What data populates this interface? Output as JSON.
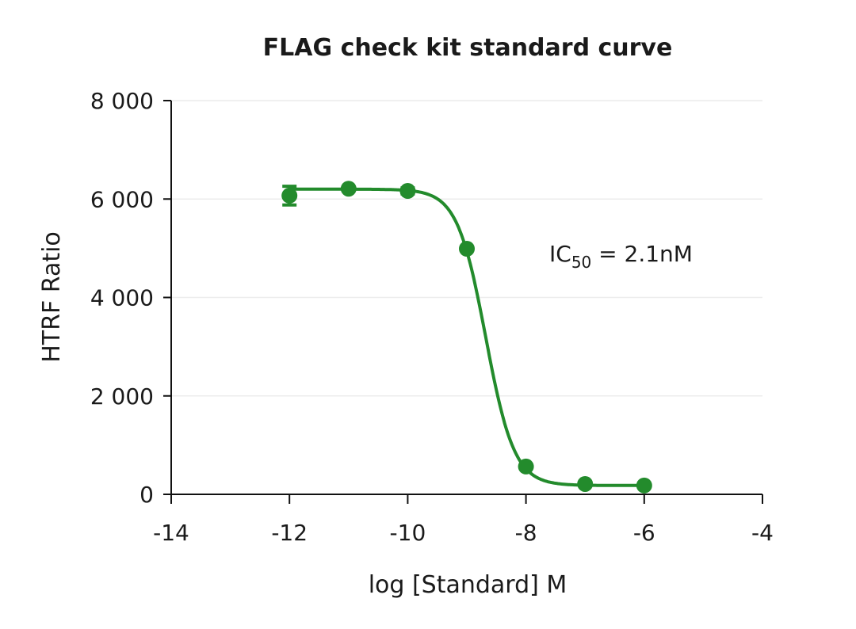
{
  "chart_data": {
    "type": "scatter",
    "title": "FLAG check kit standard curve",
    "xlabel": "log [Standard] M",
    "ylabel": "HTRF Ratio",
    "xlim": [
      -14,
      -4
    ],
    "ylim": [
      0,
      8000
    ],
    "x_ticks": [
      -14,
      -12,
      -10,
      -8,
      -6,
      -4
    ],
    "x_tick_labels": [
      "-14",
      "-12",
      "-10",
      "-8",
      "-6",
      "-4"
    ],
    "y_ticks": [
      0,
      2000,
      4000,
      6000,
      8000
    ],
    "y_tick_labels": [
      "0",
      "2 000",
      "4 000",
      "6 000",
      "8 000"
    ],
    "grid": "horizontal",
    "color": "#238b2c",
    "points": {
      "x": [
        -12,
        -11,
        -10,
        -9,
        -8,
        -7,
        -6
      ],
      "y": [
        6070,
        6210,
        6165,
        4990,
        565,
        210,
        180
      ],
      "error": [
        190,
        0,
        60,
        0,
        0,
        0,
        0
      ]
    },
    "fit": {
      "model": "4PL",
      "top": 6200,
      "bottom": 180,
      "logIC50": -8.68,
      "hill": 1.8
    },
    "annotation": {
      "prefix": "IC",
      "subscript": "50",
      "suffix": " = 2.1nM"
    }
  }
}
